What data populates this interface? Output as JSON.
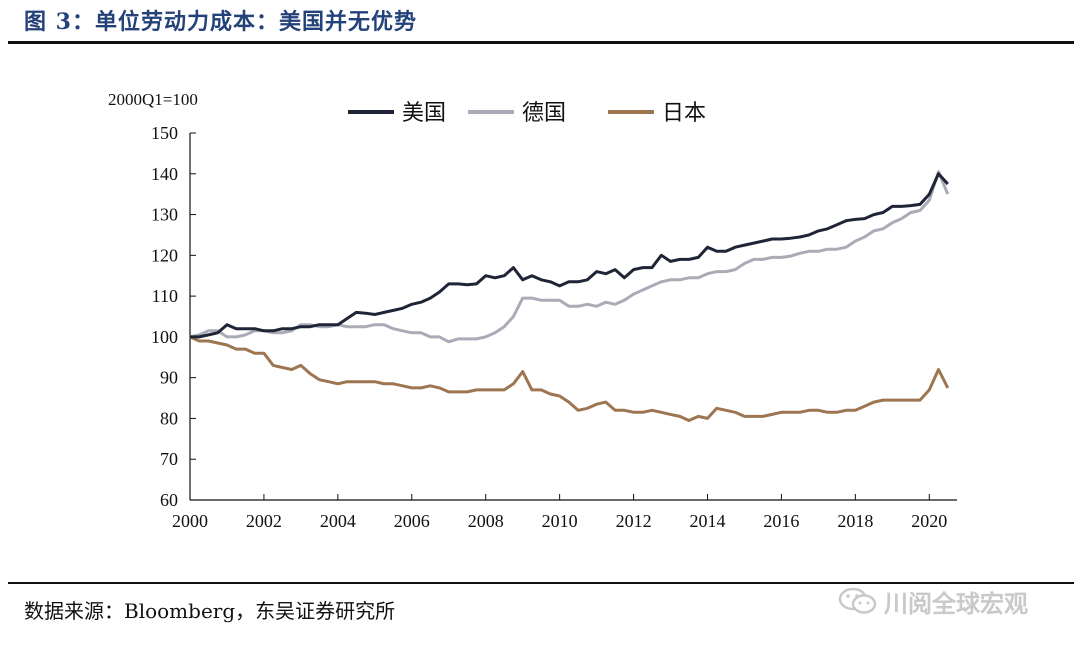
{
  "figure": {
    "title": "图 3：单位劳动力成本：美国并无优势",
    "source": "数据来源：Bloomberg，东吴证券研究所",
    "watermark": "川阅全球宏观"
  },
  "chart_data": {
    "type": "line",
    "unit_label": "2000Q1=100",
    "ylim": [
      60,
      150
    ],
    "yticks": [
      60,
      70,
      80,
      90,
      100,
      110,
      120,
      130,
      140,
      150
    ],
    "xlim": [
      2000,
      2020.75
    ],
    "xticks": [
      2000,
      2002,
      2004,
      2006,
      2008,
      2010,
      2012,
      2014,
      2016,
      2018,
      2020
    ],
    "legend_position": "top-center",
    "grid": false,
    "series": [
      {
        "name": "美国",
        "color": "#1f2537",
        "x": [
          2000.0,
          2000.25,
          2000.5,
          2000.75,
          2001.0,
          2001.25,
          2001.5,
          2001.75,
          2002.0,
          2002.25,
          2002.5,
          2002.75,
          2003.0,
          2003.25,
          2003.5,
          2003.75,
          2004.0,
          2004.25,
          2004.5,
          2004.75,
          2005.0,
          2005.25,
          2005.5,
          2005.75,
          2006.0,
          2006.25,
          2006.5,
          2006.75,
          2007.0,
          2007.25,
          2007.5,
          2007.75,
          2008.0,
          2008.25,
          2008.5,
          2008.75,
          2009.0,
          2009.25,
          2009.5,
          2009.75,
          2010.0,
          2010.25,
          2010.5,
          2010.75,
          2011.0,
          2011.25,
          2011.5,
          2011.75,
          2012.0,
          2012.25,
          2012.5,
          2012.75,
          2013.0,
          2013.25,
          2013.5,
          2013.75,
          2014.0,
          2014.25,
          2014.5,
          2014.75,
          2015.0,
          2015.25,
          2015.5,
          2015.75,
          2016.0,
          2016.25,
          2016.5,
          2016.75,
          2017.0,
          2017.25,
          2017.5,
          2017.75,
          2018.0,
          2018.25,
          2018.5,
          2018.75,
          2019.0,
          2019.25,
          2019.5,
          2019.75,
          2020.0,
          2020.25,
          2020.5
        ],
        "values": [
          100.0,
          100.0,
          100.5,
          101.0,
          103.0,
          102.0,
          102.0,
          102.0,
          101.5,
          101.5,
          102.0,
          102.0,
          102.5,
          102.5,
          103.0,
          103.0,
          103.0,
          104.5,
          106.0,
          105.8,
          105.5,
          106.0,
          106.5,
          107.0,
          108.0,
          108.5,
          109.5,
          111.0,
          113.0,
          113.0,
          112.8,
          113.0,
          115.0,
          114.5,
          115.0,
          117.0,
          114.0,
          115.0,
          114.0,
          113.5,
          112.5,
          113.5,
          113.5,
          114.0,
          116.0,
          115.5,
          116.5,
          114.5,
          116.5,
          117.0,
          117.0,
          120.0,
          118.5,
          119.0,
          119.0,
          119.5,
          122.0,
          121.0,
          121.0,
          122.0,
          122.5,
          123.0,
          123.5,
          124.0,
          124.0,
          124.2,
          124.5,
          125.0,
          126.0,
          126.5,
          127.5,
          128.5,
          128.8,
          129.0,
          130.0,
          130.5,
          132.0,
          132.0,
          132.2,
          132.5,
          135.0,
          140.0,
          137.5
        ]
      },
      {
        "name": "德国",
        "color": "#a9acb6",
        "x": [
          2000.0,
          2000.25,
          2000.5,
          2000.75,
          2001.0,
          2001.25,
          2001.5,
          2001.75,
          2002.0,
          2002.25,
          2002.5,
          2002.75,
          2003.0,
          2003.25,
          2003.5,
          2003.75,
          2004.0,
          2004.25,
          2004.5,
          2004.75,
          2005.0,
          2005.25,
          2005.5,
          2005.75,
          2006.0,
          2006.25,
          2006.5,
          2006.75,
          2007.0,
          2007.25,
          2007.5,
          2007.75,
          2008.0,
          2008.25,
          2008.5,
          2008.75,
          2009.0,
          2009.25,
          2009.5,
          2009.75,
          2010.0,
          2010.25,
          2010.5,
          2010.75,
          2011.0,
          2011.25,
          2011.5,
          2011.75,
          2012.0,
          2012.25,
          2012.5,
          2012.75,
          2013.0,
          2013.25,
          2013.5,
          2013.75,
          2014.0,
          2014.25,
          2014.5,
          2014.75,
          2015.0,
          2015.25,
          2015.5,
          2015.75,
          2016.0,
          2016.25,
          2016.5,
          2016.75,
          2017.0,
          2017.25,
          2017.5,
          2017.75,
          2018.0,
          2018.25,
          2018.5,
          2018.75,
          2019.0,
          2019.25,
          2019.5,
          2019.75,
          2020.0,
          2020.25,
          2020.5
        ],
        "values": [
          100.0,
          100.5,
          101.5,
          101.5,
          100.0,
          100.0,
          100.5,
          101.5,
          101.5,
          101.0,
          101.0,
          101.5,
          103.0,
          103.0,
          102.5,
          102.5,
          103.0,
          102.5,
          102.5,
          102.5,
          103.0,
          103.0,
          102.0,
          101.5,
          101.0,
          101.0,
          100.0,
          100.0,
          98.8,
          99.5,
          99.5,
          99.5,
          100.0,
          101.0,
          102.5,
          105.0,
          109.5,
          109.5,
          109.0,
          109.0,
          109.0,
          107.5,
          107.5,
          108.0,
          107.5,
          108.5,
          108.0,
          109.0,
          110.5,
          111.5,
          112.5,
          113.5,
          114.0,
          114.0,
          114.5,
          114.5,
          115.5,
          116.0,
          116.0,
          116.5,
          118.0,
          119.0,
          119.0,
          119.5,
          119.5,
          119.8,
          120.5,
          121.0,
          121.0,
          121.5,
          121.5,
          122.0,
          123.5,
          124.5,
          126.0,
          126.5,
          128.0,
          129.0,
          130.5,
          131.0,
          133.5,
          140.5,
          135.0
        ]
      },
      {
        "name": "日本",
        "color": "#9e7551",
        "x": [
          2000.0,
          2000.25,
          2000.5,
          2000.75,
          2001.0,
          2001.25,
          2001.5,
          2001.75,
          2002.0,
          2002.25,
          2002.5,
          2002.75,
          2003.0,
          2003.25,
          2003.5,
          2003.75,
          2004.0,
          2004.25,
          2004.5,
          2004.75,
          2005.0,
          2005.25,
          2005.5,
          2005.75,
          2006.0,
          2006.25,
          2006.5,
          2006.75,
          2007.0,
          2007.25,
          2007.5,
          2007.75,
          2008.0,
          2008.25,
          2008.5,
          2008.75,
          2009.0,
          2009.25,
          2009.5,
          2009.75,
          2010.0,
          2010.25,
          2010.5,
          2010.75,
          2011.0,
          2011.25,
          2011.5,
          2011.75,
          2012.0,
          2012.25,
          2012.5,
          2012.75,
          2013.0,
          2013.25,
          2013.5,
          2013.75,
          2014.0,
          2014.25,
          2014.5,
          2014.75,
          2015.0,
          2015.25,
          2015.5,
          2015.75,
          2016.0,
          2016.25,
          2016.5,
          2016.75,
          2017.0,
          2017.25,
          2017.5,
          2017.75,
          2018.0,
          2018.25,
          2018.5,
          2018.75,
          2019.0,
          2019.25,
          2019.5,
          2019.75,
          2020.0,
          2020.25,
          2020.5
        ],
        "values": [
          100.0,
          99.0,
          99.0,
          98.5,
          98.0,
          97.0,
          97.0,
          96.0,
          96.0,
          93.0,
          92.5,
          92.0,
          93.0,
          91.0,
          89.5,
          89.0,
          88.5,
          89.0,
          89.0,
          89.0,
          89.0,
          88.5,
          88.5,
          88.0,
          87.5,
          87.5,
          88.0,
          87.5,
          86.5,
          86.5,
          86.5,
          87.0,
          87.0,
          87.0,
          87.0,
          88.5,
          91.5,
          87.0,
          87.0,
          86.0,
          85.5,
          84.0,
          82.0,
          82.5,
          83.5,
          84.0,
          82.0,
          82.0,
          81.5,
          81.5,
          82.0,
          81.5,
          81.0,
          80.5,
          79.5,
          80.5,
          80.0,
          82.5,
          82.0,
          81.5,
          80.5,
          80.5,
          80.5,
          81.0,
          81.5,
          81.5,
          81.5,
          82.0,
          82.0,
          81.5,
          81.5,
          82.0,
          82.0,
          83.0,
          84.0,
          84.5,
          84.5,
          84.5,
          84.5,
          84.5,
          87.0,
          92.0,
          87.5
        ]
      }
    ]
  }
}
